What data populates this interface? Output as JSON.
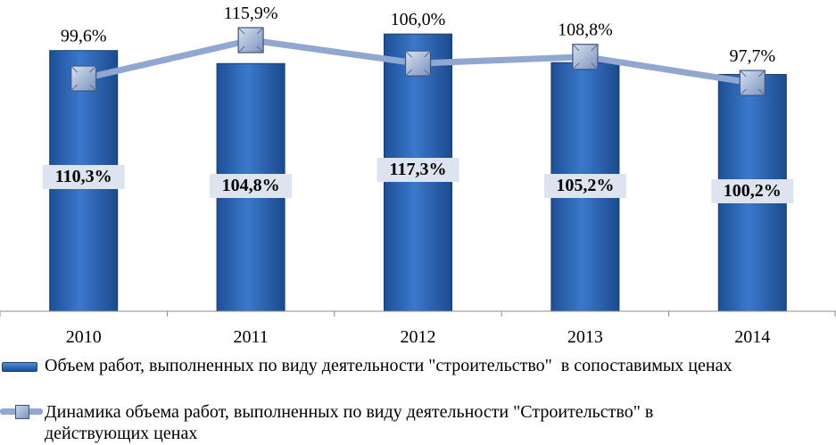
{
  "chart_data": {
    "type": "bar",
    "categories": [
      "2010",
      "2011",
      "2012",
      "2013",
      "2014"
    ],
    "series": [
      {
        "name": "Объем работ, выполненных по виду деятельности \"строительство\"  в сопоставимых ценах",
        "type": "bar",
        "values": [
          110.3,
          104.8,
          117.3,
          105.2,
          100.2
        ],
        "labels": [
          "110,3%",
          "104,8%",
          "117,3%",
          "105,2%",
          "100,2%"
        ],
        "color": "#2f6bbf"
      },
      {
        "name": "Динамика объема работ, выполненных по виду деятельности \"Строительство\" в действующих ценах",
        "type": "line",
        "values": [
          99.6,
          115.9,
          106.0,
          108.8,
          97.7
        ],
        "labels": [
          "99,6%",
          "115,9%",
          "106,0%",
          "108,8%",
          "97,7%"
        ],
        "color": "#8fa7d1"
      }
    ],
    "grid": false,
    "legend_position": "bottom"
  },
  "legend": {
    "bar_label": "Объем работ, выполненных по виду деятельности \"строительство\"  в сопоставимых ценах",
    "line_label": "Динамика объема работ, выполненных по виду деятельности \"Строительство\" в действующих ценах"
  }
}
